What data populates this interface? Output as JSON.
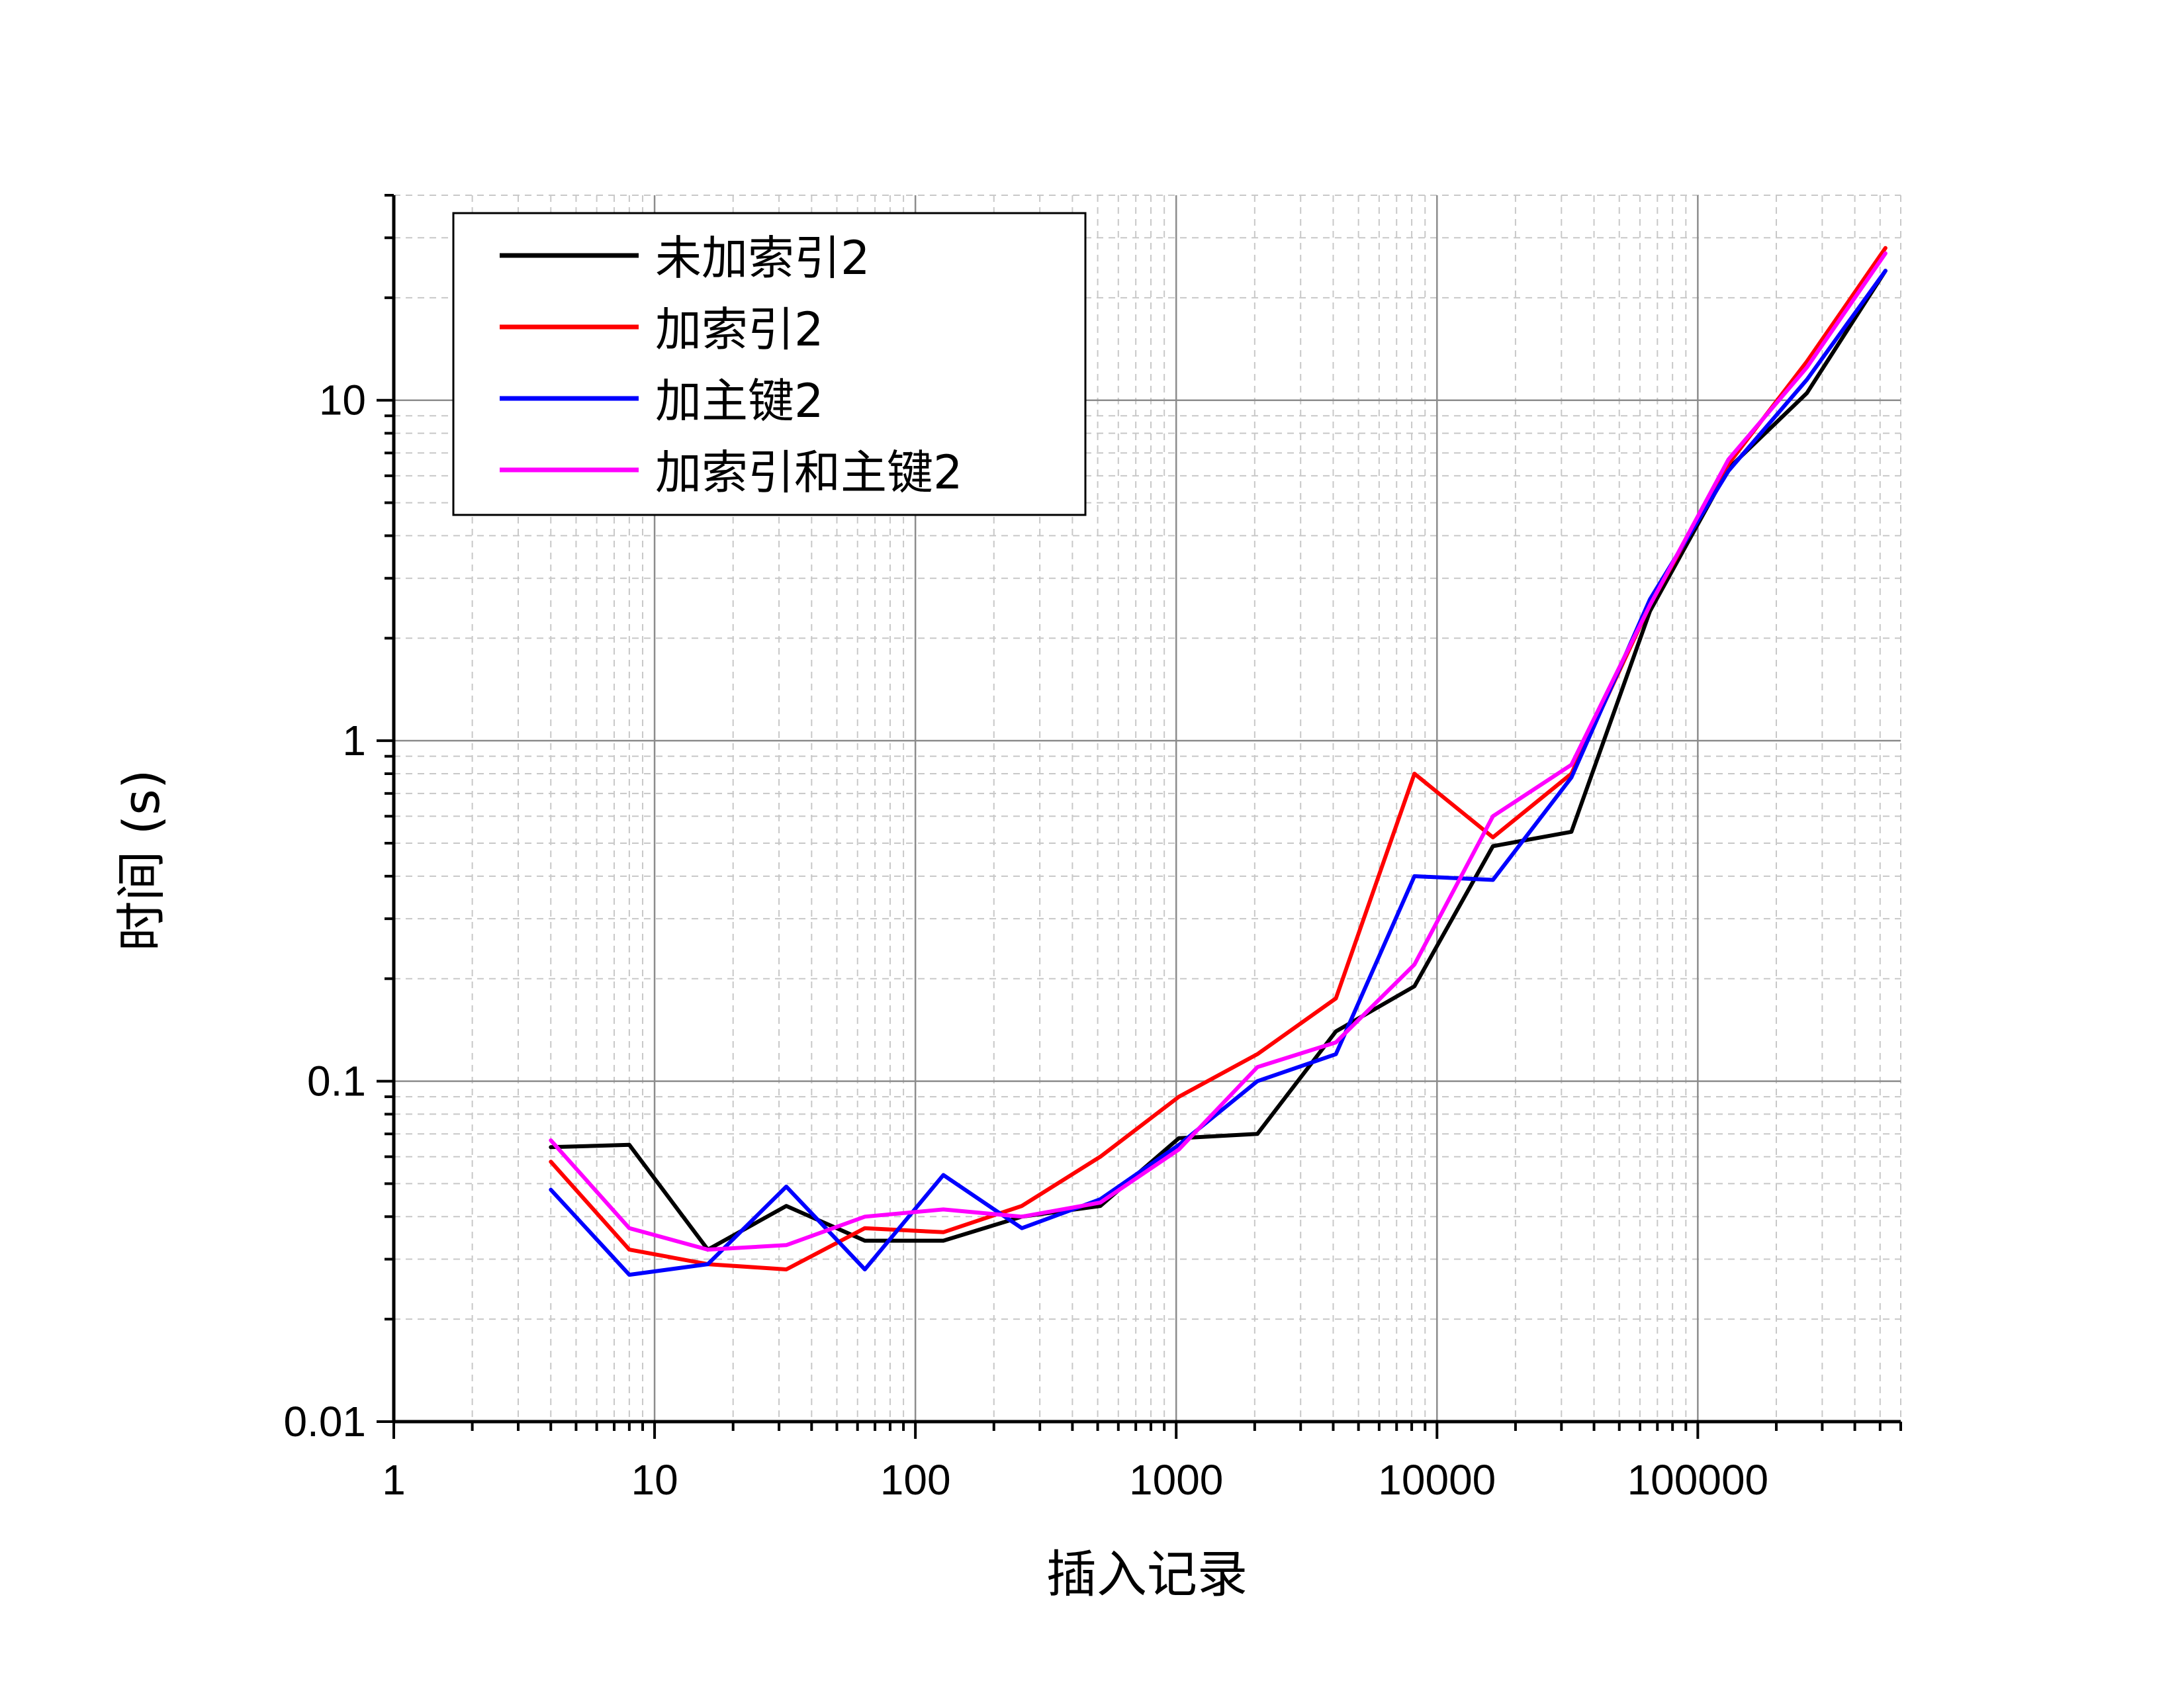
{
  "chart_data": {
    "type": "line",
    "xlabel": "插入记录",
    "ylabel": "时间 (s)",
    "x_scale": "log",
    "y_scale": "log",
    "xlim": [
      1,
      600000
    ],
    "ylim": [
      0.01,
      40
    ],
    "x_ticks": [
      1,
      10,
      100,
      1000,
      10000,
      100000
    ],
    "x_tick_labels": [
      "1",
      "10",
      "100",
      "1000",
      "10000",
      "100000"
    ],
    "y_ticks": [
      0.01,
      0.1,
      1,
      10
    ],
    "y_tick_labels": [
      "0.01",
      "0.1",
      "1",
      "10"
    ],
    "grid": true,
    "legend_position": "top-left",
    "x": [
      4,
      8,
      16,
      32,
      64,
      128,
      256,
      512,
      1024,
      2048,
      4096,
      8192,
      16384,
      32768,
      65536,
      131072,
      262144,
      524288
    ],
    "series": [
      {
        "name": "未加索引2",
        "color": "#000000",
        "values": [
          0.064,
          0.065,
          0.032,
          0.043,
          0.034,
          0.034,
          0.04,
          0.043,
          0.068,
          0.07,
          0.14,
          0.19,
          0.49,
          0.54,
          2.4,
          6.3,
          10.5,
          24
        ]
      },
      {
        "name": "加索引2",
        "color": "#ff0000",
        "values": [
          0.058,
          0.032,
          0.029,
          0.028,
          0.037,
          0.036,
          0.043,
          0.06,
          0.09,
          0.12,
          0.175,
          0.8,
          0.52,
          0.8,
          2.5,
          6.5,
          13,
          28
        ]
      },
      {
        "name": "加主键2",
        "color": "#0000ff",
        "values": [
          0.048,
          0.027,
          0.029,
          0.049,
          0.028,
          0.053,
          0.037,
          0.045,
          0.065,
          0.1,
          0.12,
          0.4,
          0.39,
          0.78,
          2.6,
          6.2,
          11.5,
          24
        ]
      },
      {
        "name": "加索引和主键2",
        "color": "#ff00ff",
        "values": [
          0.067,
          0.037,
          0.032,
          0.033,
          0.04,
          0.042,
          0.04,
          0.044,
          0.063,
          0.11,
          0.13,
          0.22,
          0.6,
          0.85,
          2.5,
          6.7,
          12.5,
          27
        ]
      }
    ]
  }
}
